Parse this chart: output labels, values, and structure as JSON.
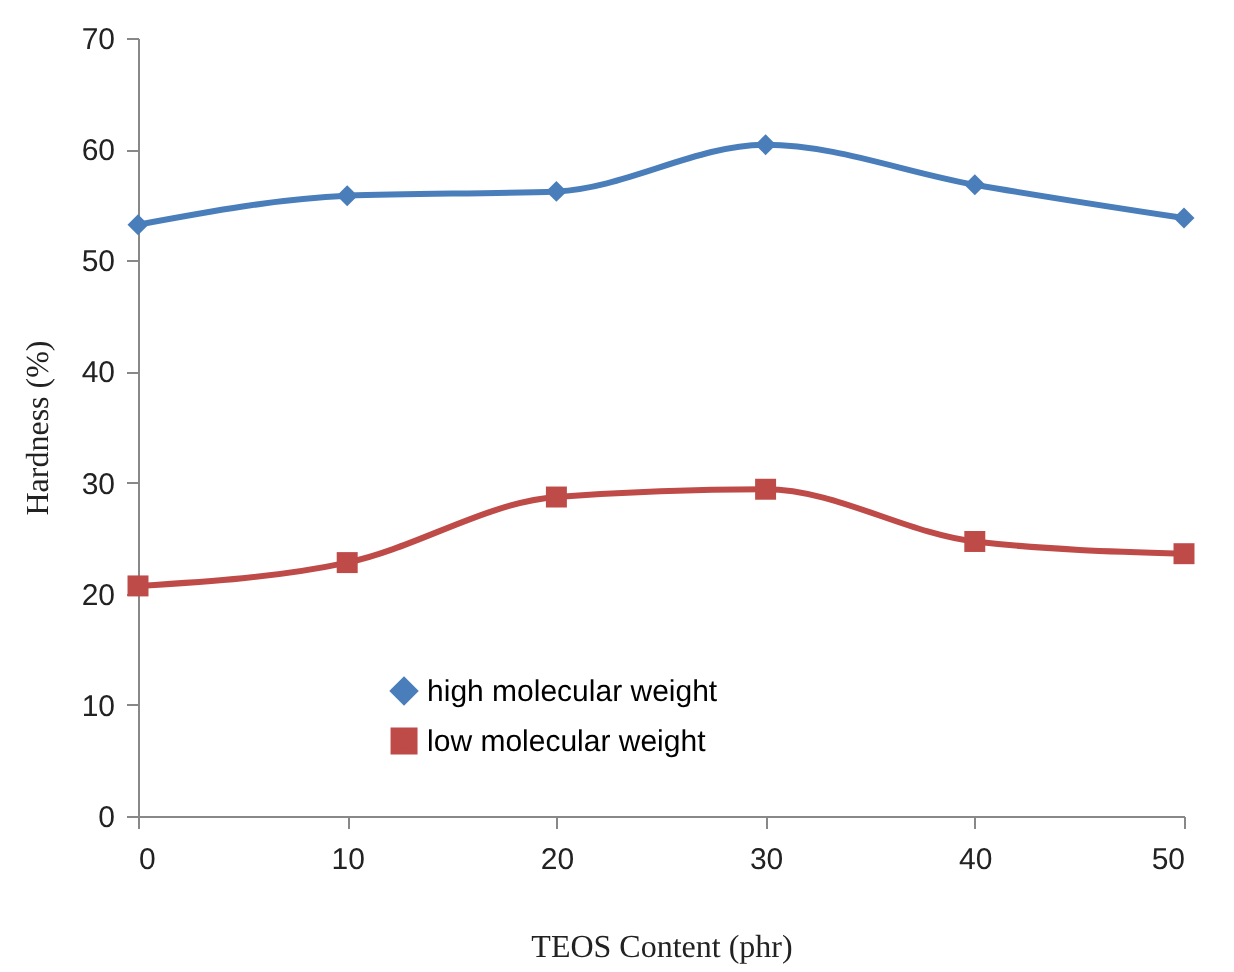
{
  "chart_data": {
    "type": "line",
    "xlabel": "TEOS Content (phr)",
    "ylabel": "Hardness (%)",
    "x": [
      0,
      10,
      20,
      30,
      40,
      50
    ],
    "series": [
      {
        "name": "high molecular weight",
        "color": "#4a7ebb",
        "marker": "diamond",
        "values": [
          53.2,
          55.8,
          56.2,
          60.4,
          56.8,
          53.8
        ]
      },
      {
        "name": "low molecular weight",
        "color": "#be4b48",
        "marker": "square",
        "values": [
          20.7,
          22.8,
          28.7,
          29.4,
          24.7,
          23.6
        ]
      }
    ],
    "xlim": [
      0,
      50
    ],
    "xticks": [
      0,
      10,
      20,
      30,
      40,
      50
    ],
    "ylim": [
      0,
      70
    ],
    "yticks": [
      0,
      10,
      20,
      30,
      40,
      50,
      60,
      70
    ],
    "grid": false,
    "legend": "bottom",
    "line_style": "solid"
  }
}
